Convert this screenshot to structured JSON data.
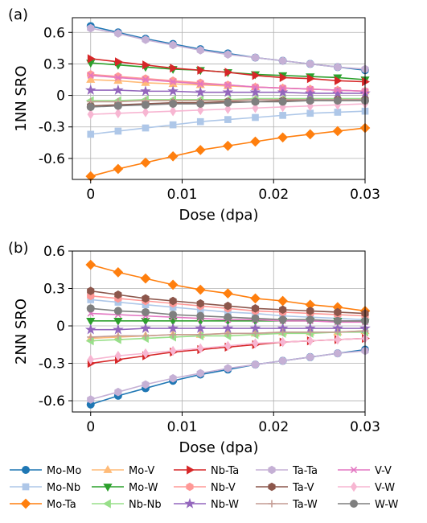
{
  "chart_data": [
    {
      "type": "line",
      "panel_label": "(a)",
      "xlabel": "Dose (dpa)",
      "ylabel": "1NN SRO",
      "xlim": [
        -0.002,
        0.03
      ],
      "ylim": [
        -0.8,
        0.74
      ],
      "xticks": [
        0,
        0.01,
        0.02,
        0.03
      ],
      "xtick_labels": [
        "0",
        "0.01",
        "0.02",
        "0.03"
      ],
      "yticks": [
        -0.6,
        -0.3,
        0,
        0.3,
        0.6
      ],
      "ytick_labels": [
        "-0.6",
        "-0.3",
        "0",
        "0.3",
        "0.6"
      ],
      "grid": true,
      "x": [
        0,
        0.003,
        0.006,
        0.009,
        0.012,
        0.015,
        0.018,
        0.021,
        0.024,
        0.027,
        0.03
      ],
      "series": [
        {
          "name": "Mo-Mo",
          "values": [
            0.66,
            0.6,
            0.54,
            0.49,
            0.44,
            0.4,
            0.36,
            0.33,
            0.3,
            0.27,
            0.24
          ]
        },
        {
          "name": "Mo-Nb",
          "values": [
            -0.37,
            -0.34,
            -0.31,
            -0.28,
            -0.25,
            -0.23,
            -0.21,
            -0.19,
            -0.17,
            -0.16,
            -0.15
          ]
        },
        {
          "name": "Mo-Ta",
          "values": [
            -0.77,
            -0.7,
            -0.64,
            -0.58,
            -0.52,
            -0.48,
            -0.44,
            -0.4,
            -0.37,
            -0.34,
            -0.31
          ]
        },
        {
          "name": "Mo-V",
          "values": [
            0.15,
            0.14,
            0.12,
            0.11,
            0.1,
            0.09,
            0.08,
            0.07,
            0.06,
            0.05,
            0.04
          ]
        },
        {
          "name": "Mo-W",
          "values": [
            0.31,
            0.29,
            0.27,
            0.25,
            0.24,
            0.22,
            0.2,
            0.19,
            0.18,
            0.17,
            0.15
          ]
        },
        {
          "name": "Nb-Nb",
          "values": [
            -0.05,
            -0.05,
            -0.04,
            -0.04,
            -0.04,
            -0.04,
            -0.03,
            -0.03,
            -0.03,
            -0.03,
            -0.03
          ]
        },
        {
          "name": "Nb-Ta",
          "values": [
            0.35,
            0.32,
            0.29,
            0.26,
            0.24,
            0.22,
            0.19,
            0.17,
            0.16,
            0.14,
            0.13
          ]
        },
        {
          "name": "Nb-V",
          "values": [
            0.2,
            0.18,
            0.16,
            0.14,
            0.12,
            0.1,
            0.08,
            0.07,
            0.06,
            0.05,
            0.04
          ]
        },
        {
          "name": "Nb-W",
          "values": [
            0.05,
            0.05,
            0.04,
            0.04,
            0.03,
            0.03,
            0.03,
            0.03,
            0.02,
            0.02,
            0.02
          ]
        },
        {
          "name": "Ta-Ta",
          "values": [
            0.64,
            0.59,
            0.53,
            0.48,
            0.43,
            0.39,
            0.36,
            0.33,
            0.3,
            0.27,
            0.25
          ]
        },
        {
          "name": "Ta-V",
          "values": [
            -0.1,
            -0.09,
            -0.08,
            -0.07,
            -0.07,
            -0.06,
            -0.06,
            -0.05,
            -0.05,
            -0.04,
            -0.04
          ]
        },
        {
          "name": "Ta-W",
          "values": [
            -0.06,
            -0.06,
            -0.05,
            -0.05,
            -0.05,
            -0.05,
            -0.04,
            -0.04,
            -0.04,
            -0.04,
            -0.04
          ]
        },
        {
          "name": "V-V",
          "values": [
            0.19,
            0.17,
            0.15,
            0.13,
            0.11,
            0.1,
            0.08,
            0.07,
            0.06,
            0.05,
            0.04
          ]
        },
        {
          "name": "V-W",
          "values": [
            -0.18,
            -0.17,
            -0.16,
            -0.15,
            -0.14,
            -0.13,
            -0.12,
            -0.11,
            -0.1,
            -0.09,
            -0.08
          ]
        },
        {
          "name": "W-W",
          "values": [
            -0.11,
            -0.1,
            -0.09,
            -0.08,
            -0.08,
            -0.07,
            -0.06,
            -0.06,
            -0.05,
            -0.05,
            -0.05
          ]
        }
      ]
    },
    {
      "type": "line",
      "panel_label": "(b)",
      "xlabel": "Dose (dpa)",
      "ylabel": "2NN SRO",
      "xlim": [
        -0.002,
        0.03
      ],
      "ylim": [
        -0.69,
        0.6
      ],
      "xticks": [
        0,
        0.01,
        0.02,
        0.03
      ],
      "xtick_labels": [
        "0",
        "0.01",
        "0.02",
        "0.03"
      ],
      "yticks": [
        -0.6,
        -0.3,
        0,
        0.3,
        0.6
      ],
      "ytick_labels": [
        "-0.6",
        "-0.3",
        "0",
        "0.3",
        "0.6"
      ],
      "grid": true,
      "x": [
        0,
        0.003,
        0.006,
        0.009,
        0.012,
        0.015,
        0.018,
        0.021,
        0.024,
        0.027,
        0.03
      ],
      "series": [
        {
          "name": "Mo-Mo",
          "values": [
            -0.63,
            -0.56,
            -0.5,
            -0.44,
            -0.39,
            -0.35,
            -0.31,
            -0.28,
            -0.25,
            -0.22,
            -0.19
          ]
        },
        {
          "name": "Mo-Nb",
          "values": [
            0.21,
            0.19,
            0.17,
            0.15,
            0.13,
            0.11,
            0.1,
            0.08,
            0.07,
            0.06,
            0.05
          ]
        },
        {
          "name": "Mo-Ta",
          "values": [
            0.49,
            0.43,
            0.38,
            0.33,
            0.29,
            0.26,
            0.22,
            0.2,
            0.17,
            0.15,
            0.12
          ]
        },
        {
          "name": "Mo-V",
          "values": [
            -0.1,
            -0.09,
            -0.08,
            -0.07,
            -0.07,
            -0.06,
            -0.06,
            -0.05,
            -0.05,
            -0.05,
            -0.04
          ]
        },
        {
          "name": "Mo-W",
          "values": [
            0.04,
            0.04,
            0.04,
            0.04,
            0.04,
            0.04,
            0.04,
            0.04,
            0.04,
            0.04,
            0.03
          ]
        },
        {
          "name": "Nb-Nb",
          "values": [
            -0.12,
            -0.11,
            -0.1,
            -0.09,
            -0.08,
            -0.08,
            -0.07,
            -0.06,
            -0.06,
            -0.05,
            -0.05
          ]
        },
        {
          "name": "Nb-Ta",
          "values": [
            -0.3,
            -0.27,
            -0.24,
            -0.21,
            -0.19,
            -0.17,
            -0.15,
            -0.13,
            -0.12,
            -0.11,
            -0.1
          ]
        },
        {
          "name": "Nb-V",
          "values": [
            0.24,
            0.22,
            0.2,
            0.18,
            0.16,
            0.14,
            0.12,
            0.11,
            0.1,
            0.09,
            0.08
          ]
        },
        {
          "name": "Nb-W",
          "values": [
            -0.03,
            -0.03,
            -0.02,
            -0.02,
            -0.02,
            -0.02,
            -0.02,
            -0.02,
            -0.02,
            -0.02,
            -0.02
          ]
        },
        {
          "name": "Ta-Ta",
          "values": [
            -0.59,
            -0.53,
            -0.47,
            -0.42,
            -0.38,
            -0.34,
            -0.31,
            -0.28,
            -0.25,
            -0.22,
            -0.2
          ]
        },
        {
          "name": "Ta-V",
          "values": [
            0.28,
            0.25,
            0.22,
            0.2,
            0.18,
            0.16,
            0.14,
            0.13,
            0.12,
            0.11,
            0.1
          ]
        },
        {
          "name": "Ta-W",
          "values": [
            -0.09,
            -0.08,
            -0.08,
            -0.07,
            -0.07,
            -0.06,
            -0.06,
            -0.05,
            -0.05,
            -0.05,
            -0.04
          ]
        },
        {
          "name": "V-V",
          "values": [
            0.1,
            0.09,
            0.08,
            0.07,
            0.06,
            0.05,
            0.05,
            0.04,
            0.04,
            0.03,
            0.03
          ]
        },
        {
          "name": "V-W",
          "values": [
            -0.27,
            -0.24,
            -0.22,
            -0.2,
            -0.18,
            -0.16,
            -0.14,
            -0.13,
            -0.12,
            -0.11,
            -0.1
          ]
        },
        {
          "name": "W-W",
          "values": [
            0.14,
            0.12,
            0.11,
            0.09,
            0.08,
            0.07,
            0.06,
            0.05,
            0.05,
            0.04,
            0.04
          ]
        }
      ]
    }
  ],
  "series_styles": [
    {
      "color": "#1f77b4",
      "marker": "circle"
    },
    {
      "color": "#aec7e8",
      "marker": "square"
    },
    {
      "color": "#ff7f0e",
      "marker": "diamond"
    },
    {
      "color": "#ffbb78",
      "marker": "triangle-up"
    },
    {
      "color": "#2ca02c",
      "marker": "triangle-down"
    },
    {
      "color": "#98df8a",
      "marker": "triangle-left"
    },
    {
      "color": "#d62728",
      "marker": "triangle-right"
    },
    {
      "color": "#ff9896",
      "marker": "hexagon"
    },
    {
      "color": "#9467bd",
      "marker": "star"
    },
    {
      "color": "#c5b0d5",
      "marker": "hexagon"
    },
    {
      "color": "#8c564b",
      "marker": "hexagon"
    },
    {
      "color": "#c49c94",
      "marker": "plus"
    },
    {
      "color": "#e377c2",
      "marker": "x"
    },
    {
      "color": "#f7b6d2",
      "marker": "thin-diamond"
    },
    {
      "color": "#7f7f7f",
      "marker": "circle"
    }
  ],
  "legend": {
    "placement": "bottom",
    "columns": 5,
    "entries": [
      "Mo-Mo",
      "Mo-Nb",
      "Mo-Ta",
      "Mo-V",
      "Mo-W",
      "Nb-Nb",
      "Nb-Ta",
      "Nb-V",
      "Nb-W",
      "Ta-Ta",
      "Ta-V",
      "Ta-W",
      "V-V",
      "V-W",
      "W-W"
    ]
  }
}
